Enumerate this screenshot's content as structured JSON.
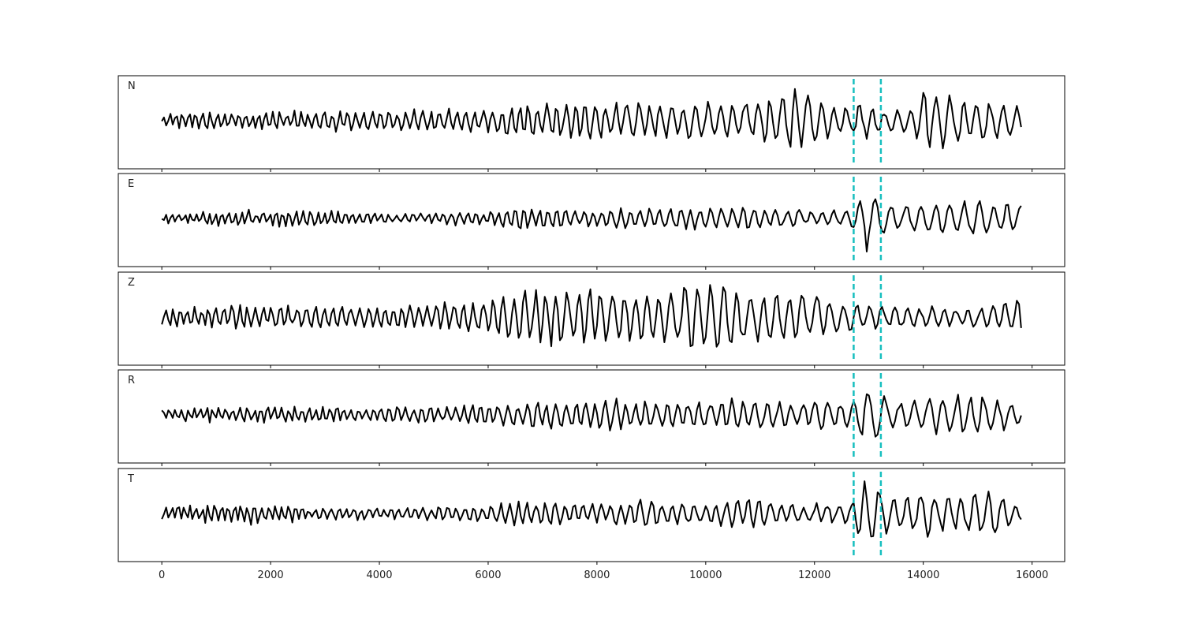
{
  "chart_data": {
    "type": "line",
    "x_ticks": [
      0,
      2000,
      4000,
      6000,
      8000,
      10000,
      12000,
      14000,
      16000
    ],
    "xlim": [
      -800,
      16600
    ],
    "x_range": [
      0,
      15800
    ],
    "sample_step": 40,
    "ylim": [
      -1,
      1
    ],
    "markers": [
      12720,
      13220
    ],
    "marker_style": "dashed",
    "line_color": "#000000",
    "marker_color": "#17bfbf",
    "panels": [
      {
        "label": "N",
        "envelope": [
          [
            0,
            0.2
          ],
          [
            2000,
            0.24
          ],
          [
            4000,
            0.26
          ],
          [
            6000,
            0.3
          ],
          [
            6400,
            0.38
          ],
          [
            7000,
            0.42
          ],
          [
            8000,
            0.5
          ],
          [
            9000,
            0.4
          ],
          [
            10000,
            0.46
          ],
          [
            11000,
            0.52
          ],
          [
            11600,
            0.82
          ],
          [
            12000,
            0.6
          ],
          [
            12700,
            0.42
          ],
          [
            13000,
            0.5
          ],
          [
            13300,
            0.25
          ],
          [
            13800,
            0.4
          ],
          [
            14150,
            0.95
          ],
          [
            14500,
            0.62
          ],
          [
            15000,
            0.58
          ],
          [
            15500,
            0.42
          ],
          [
            15800,
            0.4
          ]
        ],
        "period": [
          [
            0,
            120
          ],
          [
            6000,
            160
          ],
          [
            10000,
            220
          ],
          [
            15800,
            240
          ]
        ]
      },
      {
        "label": "E",
        "envelope": [
          [
            0,
            0.12
          ],
          [
            1500,
            0.22
          ],
          [
            2500,
            0.22
          ],
          [
            4000,
            0.12
          ],
          [
            6000,
            0.15
          ],
          [
            6400,
            0.32
          ],
          [
            7000,
            0.28
          ],
          [
            8000,
            0.24
          ],
          [
            9500,
            0.26
          ],
          [
            10500,
            0.32
          ],
          [
            12000,
            0.18
          ],
          [
            12700,
            0.22
          ],
          [
            12950,
            0.95
          ],
          [
            13200,
            0.55
          ],
          [
            13500,
            0.32
          ],
          [
            14000,
            0.4
          ],
          [
            15000,
            0.46
          ],
          [
            15800,
            0.35
          ]
        ],
        "period": [
          [
            0,
            110
          ],
          [
            6000,
            150
          ],
          [
            12500,
            220
          ],
          [
            13000,
            300
          ],
          [
            15800,
            240
          ]
        ]
      },
      {
        "label": "Z",
        "envelope": [
          [
            0,
            0.22
          ],
          [
            1500,
            0.3
          ],
          [
            4000,
            0.26
          ],
          [
            6000,
            0.45
          ],
          [
            6600,
            0.7
          ],
          [
            8000,
            0.72
          ],
          [
            9000,
            0.65
          ],
          [
            10000,
            0.9
          ],
          [
            11000,
            0.62
          ],
          [
            12000,
            0.55
          ],
          [
            12700,
            0.38
          ],
          [
            13000,
            0.3
          ],
          [
            14000,
            0.28
          ],
          [
            15000,
            0.26
          ],
          [
            15650,
            0.45
          ],
          [
            15800,
            0.85
          ]
        ],
        "period": [
          [
            0,
            130
          ],
          [
            6000,
            180
          ],
          [
            10000,
            240
          ],
          [
            15800,
            230
          ]
        ]
      },
      {
        "label": "R",
        "envelope": [
          [
            0,
            0.14
          ],
          [
            2000,
            0.22
          ],
          [
            4000,
            0.2
          ],
          [
            6000,
            0.25
          ],
          [
            6500,
            0.32
          ],
          [
            8000,
            0.4
          ],
          [
            9500,
            0.34
          ],
          [
            10500,
            0.42
          ],
          [
            11600,
            0.28
          ],
          [
            12000,
            0.4
          ],
          [
            12700,
            0.32
          ],
          [
            12960,
            0.9
          ],
          [
            13200,
            0.55
          ],
          [
            13500,
            0.32
          ],
          [
            14000,
            0.42
          ],
          [
            14750,
            0.62
          ],
          [
            15500,
            0.38
          ],
          [
            15800,
            0.3
          ]
        ],
        "period": [
          [
            0,
            110
          ],
          [
            6000,
            160
          ],
          [
            12500,
            230
          ],
          [
            13000,
            290
          ],
          [
            15800,
            230
          ]
        ]
      },
      {
        "label": "T",
        "envelope": [
          [
            0,
            0.18
          ],
          [
            1500,
            0.26
          ],
          [
            3000,
            0.16
          ],
          [
            4000,
            0.14
          ],
          [
            6000,
            0.2
          ],
          [
            6500,
            0.32
          ],
          [
            7000,
            0.3
          ],
          [
            8000,
            0.26
          ],
          [
            9000,
            0.36
          ],
          [
            10000,
            0.24
          ],
          [
            10800,
            0.48
          ],
          [
            11500,
            0.22
          ],
          [
            12000,
            0.26
          ],
          [
            12700,
            0.28
          ],
          [
            12900,
            0.95
          ],
          [
            13200,
            0.62
          ],
          [
            13500,
            0.38
          ],
          [
            14000,
            0.6
          ],
          [
            14500,
            0.4
          ],
          [
            15250,
            0.6
          ],
          [
            15800,
            0.18
          ]
        ],
        "period": [
          [
            0,
            110
          ],
          [
            6000,
            160
          ],
          [
            12500,
            220
          ],
          [
            13000,
            280
          ],
          [
            15800,
            230
          ]
        ]
      }
    ]
  }
}
